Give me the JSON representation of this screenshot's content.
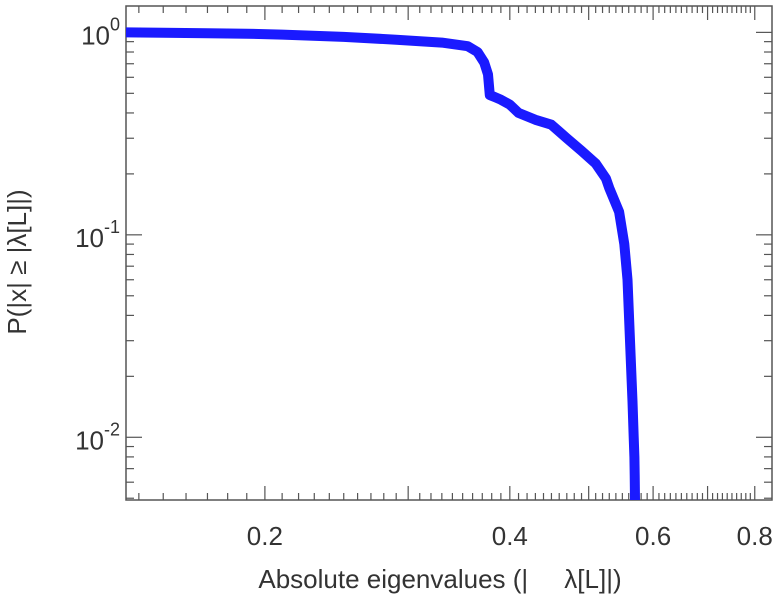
{
  "chart_data": {
    "type": "line",
    "xscale": "log",
    "yscale": "log",
    "xlim": [
      0.135,
      0.84
    ],
    "ylim": [
      0.0049,
      1.35
    ],
    "xlabel": "Absolute eigenvalues (|     λ[L]|)",
    "ylabel": "P(|x|  ≥ |λ[L]|)",
    "grid": false,
    "x_ticks": [
      {
        "value": 0.2,
        "label": "0.2"
      },
      {
        "value": 0.4,
        "label": "0.4"
      },
      {
        "value": 0.6,
        "label": "0.6"
      },
      {
        "value": 0.8,
        "label": "0.8"
      }
    ],
    "y_ticks": [
      {
        "value": 1,
        "base": "10",
        "exp": "0"
      },
      {
        "value": 0.1,
        "base": "10",
        "exp": "-1"
      },
      {
        "value": 0.01,
        "base": "10",
        "exp": "-2"
      }
    ],
    "series": [
      {
        "color": "#1a1aff",
        "x": [
          0.135,
          0.15,
          0.17,
          0.19,
          0.21,
          0.25,
          0.29,
          0.33,
          0.355,
          0.365,
          0.372,
          0.376,
          0.378,
          0.383,
          0.39,
          0.4,
          0.41,
          0.43,
          0.45,
          0.47,
          0.49,
          0.51,
          0.525,
          0.53,
          0.545,
          0.553,
          0.558,
          0.562,
          0.566,
          0.568,
          0.569,
          0.5695,
          0.57
        ],
        "y": [
          1.0,
          0.995,
          0.99,
          0.985,
          0.975,
          0.95,
          0.92,
          0.89,
          0.855,
          0.8,
          0.71,
          0.62,
          0.49,
          0.48,
          0.465,
          0.44,
          0.4,
          0.37,
          0.35,
          0.3,
          0.26,
          0.225,
          0.19,
          0.17,
          0.13,
          0.09,
          0.06,
          0.03,
          0.015,
          0.01,
          0.008,
          0.0065,
          0.0049
        ]
      }
    ]
  }
}
